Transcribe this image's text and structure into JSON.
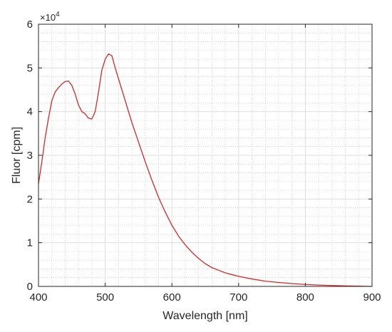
{
  "chart_data": {
    "type": "line",
    "title": "",
    "xlabel": "Wavelength [nm]",
    "ylabel": "Fluor [cpm]",
    "y_exponent_label": "×10",
    "y_exponent_power": "4",
    "xlim": [
      400,
      900
    ],
    "ylim": [
      0,
      60000
    ],
    "x_ticks": [
      400,
      500,
      600,
      700,
      800,
      900
    ],
    "y_ticks": [
      0,
      10000,
      20000,
      30000,
      40000,
      50000,
      60000
    ],
    "y_tick_labels": [
      "0",
      "1",
      "2",
      "3",
      "4",
      "5",
      "6"
    ],
    "grid": true,
    "minor_grid": true,
    "legend": "none",
    "line_color": "#d62728",
    "series": [
      {
        "x": [
          400,
          405,
          410,
          415,
          420,
          425,
          430,
          435,
          440,
          445,
          450,
          455,
          460,
          465,
          470,
          475,
          480,
          485,
          490,
          495,
          500,
          505,
          510,
          515,
          520,
          525,
          530,
          540,
          550,
          560,
          570,
          580,
          590,
          600,
          610,
          620,
          630,
          640,
          650,
          660,
          670,
          680,
          690,
          700,
          720,
          740,
          760,
          780,
          800,
          820,
          840,
          860,
          880,
          900
        ],
        "y": [
          23500,
          28500,
          34000,
          38500,
          42500,
          44500,
          45500,
          46300,
          46900,
          47000,
          46000,
          44000,
          41500,
          40000,
          39500,
          38500,
          38300,
          40000,
          44500,
          49500,
          52000,
          53200,
          52800,
          50000,
          47500,
          45000,
          42500,
          37500,
          33000,
          28500,
          24300,
          20400,
          17000,
          14000,
          11500,
          9500,
          7800,
          6400,
          5200,
          4300,
          3700,
          3100,
          2700,
          2300,
          1700,
          1200,
          900,
          650,
          450,
          300,
          200,
          120,
          60,
          0
        ]
      }
    ]
  }
}
